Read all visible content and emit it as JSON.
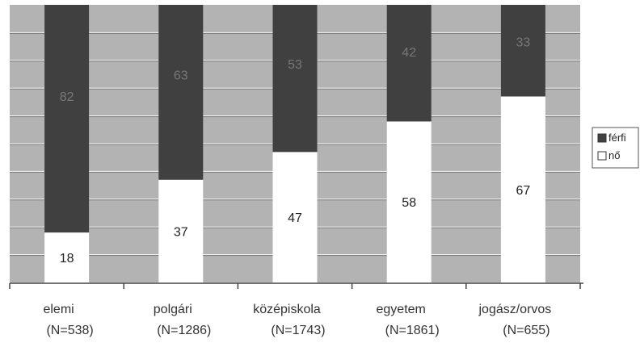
{
  "chart_data": {
    "type": "bar",
    "stacked": true,
    "normalized_percent": true,
    "categories": [
      "elemi",
      "polgári",
      "középiskola",
      "egyetem",
      "jogász/orvos"
    ],
    "category_counts": [
      "(N=538)",
      "(N=1286)",
      "(N=1743)",
      "(N=1861)",
      "(N=655)"
    ],
    "series": [
      {
        "name": "nő",
        "values": [
          18,
          37,
          47,
          58,
          67
        ],
        "color": "#ffffff",
        "label_color": "#222222"
      },
      {
        "name": "férfi",
        "values": [
          82,
          63,
          53,
          42,
          33
        ],
        "color": "#404040",
        "label_color": "#777777"
      }
    ],
    "ylim": [
      0,
      100
    ],
    "grid": true,
    "plot_background": "#b3b3b3",
    "legend_position": "right"
  }
}
